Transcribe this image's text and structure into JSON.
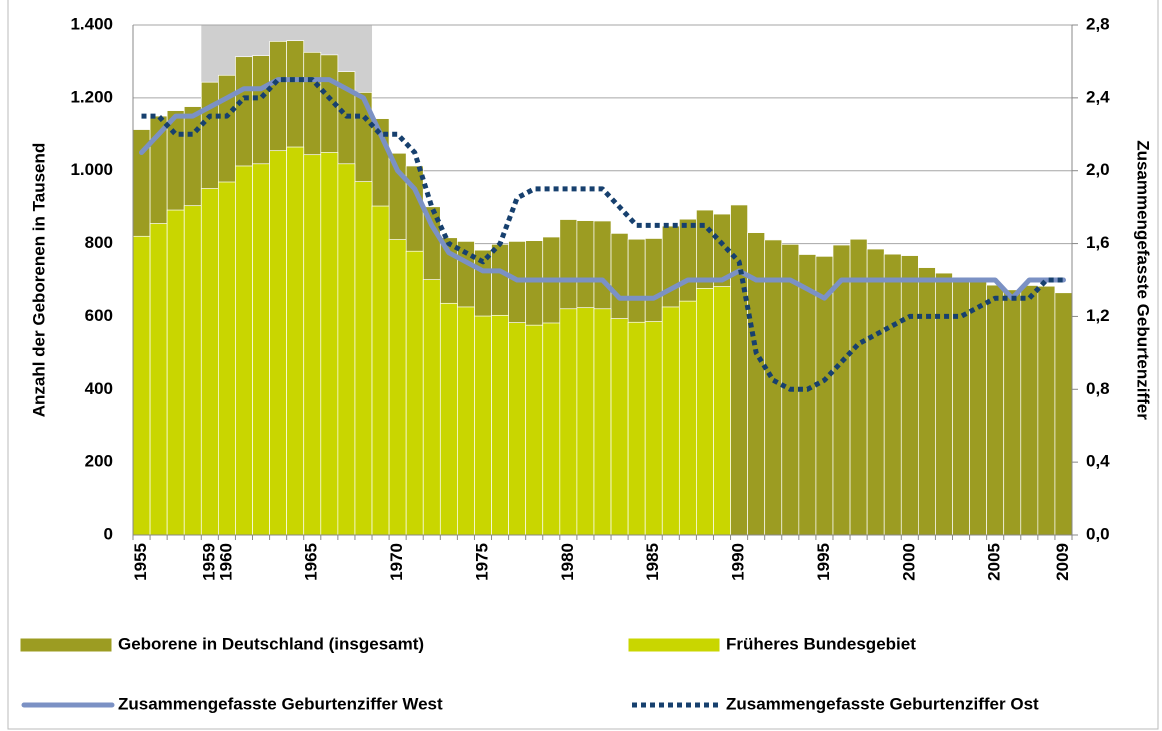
{
  "chart_data": {
    "type": "bar",
    "categories": [
      "1955",
      null,
      null,
      null,
      "1959",
      "1960",
      null,
      null,
      null,
      null,
      "1965",
      null,
      null,
      null,
      null,
      "1970",
      null,
      null,
      null,
      null,
      "1975",
      null,
      null,
      null,
      null,
      "1980",
      null,
      null,
      null,
      null,
      "1985",
      null,
      null,
      null,
      null,
      "1990",
      null,
      null,
      null,
      null,
      "1995",
      null,
      null,
      null,
      null,
      "2000",
      null,
      null,
      null,
      null,
      "2005",
      null,
      null,
      null,
      "2009"
    ],
    "ylabel": "Anzahl der Geborenen in Tausend",
    "y2label": "Zusammengefasste Geburtenziffer",
    "ylim": [
      0,
      1400
    ],
    "yticks": [
      0,
      200,
      400,
      600,
      800,
      {
        "value": 1000,
        "label": "1.000"
      },
      {
        "value": 1200,
        "label": "1.200"
      },
      {
        "value": 1400,
        "label": "1.400"
      }
    ],
    "y2lim": [
      0,
      2.8
    ],
    "y2ticks": [
      {
        "value": 0,
        "label": "0,0"
      },
      {
        "value": 0.4,
        "label": "0,4"
      },
      {
        "value": 0.8,
        "label": "0,8"
      },
      {
        "value": 1.2,
        "label": "1,2"
      },
      {
        "value": 1.6,
        "label": "1,6"
      },
      {
        "value": 2.0,
        "label": "2,0"
      },
      {
        "value": 2.4,
        "label": "2,4"
      },
      {
        "value": 2.8,
        "label": "2,8"
      }
    ],
    "grid": true,
    "legend": "bottom",
    "series": [
      {
        "name": "Geborene in Deutschland (insgesamt)",
        "color": "#9c9c22",
        "kind": "bar",
        "values": [
          1113,
          1150,
          1165,
          1176,
          1243,
          1262,
          1313,
          1316,
          1355,
          1357,
          1325,
          1318,
          1272,
          1215,
          1143,
          1048,
          1013,
          901,
          816,
          806,
          782,
          798,
          806,
          808,
          818,
          866,
          863,
          862,
          828,
          812,
          814,
          848,
          867,
          892,
          881,
          906,
          830,
          810,
          798,
          770,
          765,
          796,
          812,
          785,
          771,
          767,
          734,
          719,
          707,
          706,
          686,
          673,
          685,
          683,
          665
        ]
      },
      {
        "name": "Früheres Bundesgebiet",
        "color": "#c9d600",
        "kind": "bar",
        "values": [
          820,
          855,
          892,
          904,
          951,
          969,
          1013,
          1019,
          1055,
          1065,
          1044,
          1050,
          1019,
          970,
          903,
          811,
          779,
          701,
          636,
          626,
          601,
          603,
          583,
          576,
          582,
          621,
          624,
          621,
          594,
          584,
          586,
          626,
          642,
          677,
          682,
          null,
          null,
          null,
          null,
          null,
          null,
          null,
          null,
          null,
          null,
          null,
          null,
          null,
          null,
          null,
          null,
          null,
          null,
          null,
          null
        ]
      },
      {
        "name": "Zusammengefasste Geburtenziffer West",
        "color": "#7b91c4",
        "kind": "line",
        "axis": "y2",
        "values": [
          2.1,
          2.2,
          2.3,
          2.3,
          2.35,
          2.4,
          2.45,
          2.45,
          2.5,
          2.5,
          2.5,
          2.5,
          2.45,
          2.4,
          2.2,
          2.0,
          1.9,
          1.7,
          1.55,
          1.5,
          1.45,
          1.45,
          1.4,
          1.4,
          1.4,
          1.4,
          1.4,
          1.4,
          1.3,
          1.3,
          1.3,
          1.35,
          1.4,
          1.4,
          1.4,
          1.45,
          1.4,
          1.4,
          1.4,
          1.35,
          1.3,
          1.4,
          1.4,
          1.4,
          1.4,
          1.4,
          1.4,
          1.4,
          1.4,
          1.4,
          1.4,
          1.3,
          1.4,
          1.4,
          1.4
        ]
      },
      {
        "name": "Zusammengefasste Geburtenziffer Ost",
        "color": "#17406e",
        "kind": "line",
        "dashed": true,
        "axis": "y2",
        "values": [
          2.3,
          2.3,
          2.2,
          2.2,
          2.3,
          2.3,
          2.4,
          2.4,
          2.5,
          2.5,
          2.5,
          2.4,
          2.3,
          2.3,
          2.2,
          2.2,
          2.1,
          1.8,
          1.6,
          1.55,
          1.5,
          1.6,
          1.85,
          1.9,
          1.9,
          1.9,
          1.9,
          1.9,
          1.8,
          1.7,
          1.7,
          1.7,
          1.7,
          1.7,
          1.6,
          1.5,
          1.0,
          0.85,
          0.8,
          0.8,
          0.85,
          0.95,
          1.05,
          1.1,
          1.15,
          1.2,
          1.2,
          1.2,
          1.2,
          1.25,
          1.3,
          1.3,
          1.3,
          1.4,
          1.4
        ]
      }
    ]
  }
}
